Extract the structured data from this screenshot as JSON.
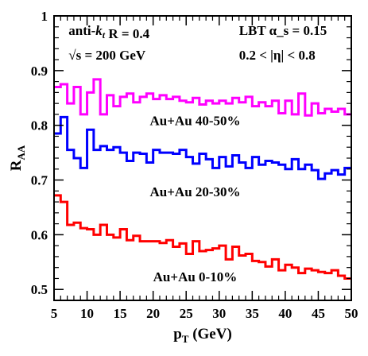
{
  "chart_data": {
    "type": "line",
    "step": true,
    "xlabel": "p_T (GeV)",
    "ylabel": "R_AA",
    "xlim": [
      5,
      50
    ],
    "ylim": [
      0.48,
      1.0
    ],
    "x_ticks": [
      5,
      10,
      15,
      20,
      25,
      30,
      35,
      40,
      45,
      50
    ],
    "y_ticks": [
      0.5,
      0.6,
      0.7,
      0.8,
      0.9,
      1.0
    ],
    "y_tick_labels": [
      "0.5",
      "0.6",
      "0.7",
      "0.8",
      "0.9",
      "1"
    ],
    "grid": false,
    "bin_edges": [
      5,
      6,
      7,
      8,
      9,
      10,
      11,
      12,
      13,
      14,
      15,
      16,
      17,
      18,
      19,
      20,
      21,
      22,
      23,
      24,
      25,
      26,
      27,
      28,
      29,
      30,
      31,
      32,
      33,
      34,
      35,
      36,
      37,
      38,
      39,
      40,
      41,
      42,
      43,
      44,
      45,
      46,
      47,
      48,
      49,
      50
    ],
    "series": [
      {
        "name": "Au+Au 40-50%",
        "color": "#ff00ff",
        "values": [
          0.87,
          0.875,
          0.84,
          0.87,
          0.82,
          0.86,
          0.884,
          0.82,
          0.855,
          0.835,
          0.852,
          0.858,
          0.842,
          0.852,
          0.858,
          0.848,
          0.855,
          0.848,
          0.852,
          0.845,
          0.842,
          0.85,
          0.838,
          0.845,
          0.84,
          0.845,
          0.84,
          0.85,
          0.842,
          0.852,
          0.835,
          0.842,
          0.835,
          0.845,
          0.822,
          0.845,
          0.82,
          0.858,
          0.818,
          0.84,
          0.822,
          0.83,
          0.825,
          0.83,
          0.82
        ]
      },
      {
        "name": "Au+Au 20-30%",
        "color": "#0000ff",
        "values": [
          0.785,
          0.815,
          0.755,
          0.74,
          0.722,
          0.792,
          0.755,
          0.762,
          0.755,
          0.76,
          0.75,
          0.735,
          0.75,
          0.748,
          0.732,
          0.755,
          0.75,
          0.75,
          0.748,
          0.755,
          0.742,
          0.73,
          0.748,
          0.738,
          0.722,
          0.742,
          0.725,
          0.745,
          0.732,
          0.722,
          0.742,
          0.728,
          0.735,
          0.732,
          0.728,
          0.72,
          0.738,
          0.72,
          0.728,
          0.718,
          0.702,
          0.712,
          0.718,
          0.71,
          0.722
        ]
      },
      {
        "name": "Au+Au 0-10%",
        "color": "#ff0000",
        "values": [
          0.672,
          0.66,
          0.618,
          0.622,
          0.612,
          0.61,
          0.6,
          0.618,
          0.6,
          0.595,
          0.61,
          0.59,
          0.598,
          0.588,
          0.588,
          0.588,
          0.585,
          0.59,
          0.578,
          0.584,
          0.565,
          0.588,
          0.57,
          0.572,
          0.575,
          0.58,
          0.555,
          0.578,
          0.562,
          0.565,
          0.552,
          0.55,
          0.542,
          0.555,
          0.535,
          0.545,
          0.54,
          0.53,
          0.538,
          0.535,
          0.532,
          0.53,
          0.535,
          0.525,
          0.52
        ]
      }
    ],
    "annotations": [
      {
        "text": "anti-k_t  R = 0.4",
        "x": 7.2,
        "y": 0.965
      },
      {
        "text": "√s = 200 GeV",
        "x": 7.2,
        "y": 0.92
      },
      {
        "text": "LBT  α_s = 0.15",
        "x": 33.0,
        "y": 0.965
      },
      {
        "text": "0.2 < |η| < 0.8",
        "x": 33.0,
        "y": 0.92
      },
      {
        "text": "Au+Au 40-50%",
        "x": 19.5,
        "y": 0.8
      },
      {
        "text": "Au+Au 20-30%",
        "x": 19.5,
        "y": 0.67
      },
      {
        "text": "Au+Au 0-10%",
        "x": 20.0,
        "y": 0.515
      }
    ]
  }
}
